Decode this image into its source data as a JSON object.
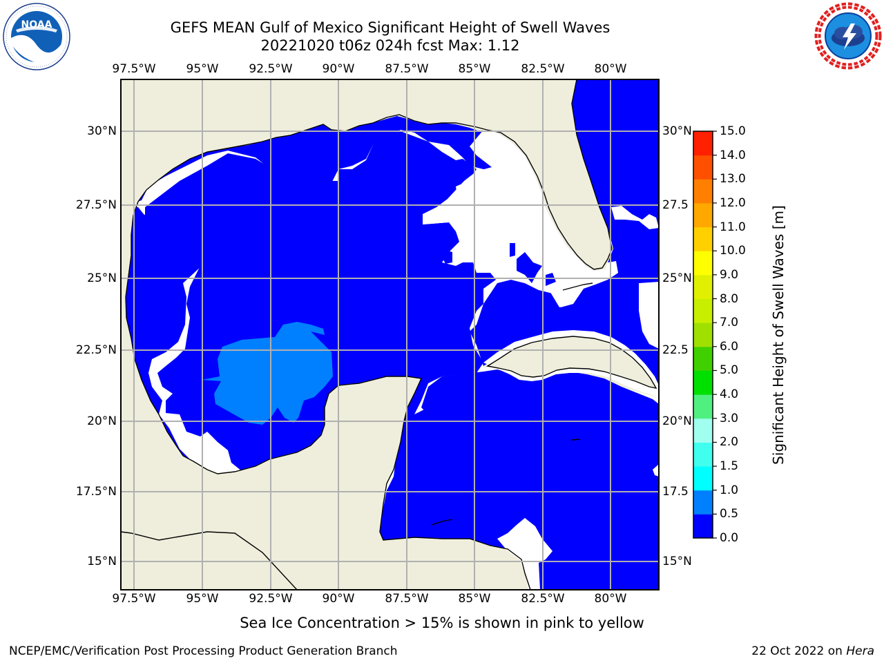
{
  "header": {
    "title": "GEFS MEAN Gulf of Mexico Significant Height of Swell Waves",
    "subtitle": "20221020 t06z 024h fcst   Max: 1.12"
  },
  "logos": {
    "noaa": {
      "text": "NOAA",
      "ring_text": "NATIONAL OCEANIC AND ATMOSPHERIC ADMINISTRATION · U.S. DEPARTMENT OF COMMERCE"
    },
    "nws": {
      "ring_text": "NATIONAL WEATHER SERVICE"
    }
  },
  "map": {
    "lon_labels": [
      "97.5°W",
      "95°W",
      "92.5°W",
      "90°W",
      "87.5°W",
      "85°W",
      "82.5°W",
      "80°W"
    ],
    "lat_labels_left": [
      "30°N",
      "27.5°N",
      "25°N",
      "22.5°N",
      "20°N",
      "17.5°N",
      "15°N"
    ],
    "lat_labels_right": [
      "30°N",
      "27.5",
      "25°N",
      "22.5",
      "20°N",
      "17.5",
      "15°N"
    ],
    "colors": {
      "land": "#efeedc",
      "no_data": "#ffffff",
      "swell_0_0.5": "#0000ff",
      "swell_0.5_1.0": "#0080ff",
      "swell_1.0_1.5": "#00ffff",
      "grid": "#b0b0b0",
      "coast": "#000000"
    }
  },
  "colorbar": {
    "title": "Significant Height of Swell Waves [m]",
    "labels": [
      "0.0",
      "0.5",
      "1.0",
      "1.5",
      "2.0",
      "3.0",
      "4.0",
      "5.0",
      "6.0",
      "7.0",
      "8.0",
      "9.0",
      "10.0",
      "11.0",
      "12.0",
      "13.0",
      "14.0",
      "15.0"
    ],
    "colors": [
      "#0000ff",
      "#0080ff",
      "#00ffff",
      "#40ffef",
      "#a0ffef",
      "#50f080",
      "#00e000",
      "#40d000",
      "#a0e000",
      "#c8ee00",
      "#e0f000",
      "#ffff00",
      "#ffd000",
      "#ffa800",
      "#ff8000",
      "#ff5000",
      "#ff2000",
      "#ff0000"
    ]
  },
  "note": "Sea Ice Concentration > 15% is shown in pink to yellow",
  "footer": {
    "left": "NCEP/EMC/Verification Post Processing Product Generation Branch",
    "right_prefix": "22 Oct 2022 on ",
    "right_machine": "Hera"
  }
}
